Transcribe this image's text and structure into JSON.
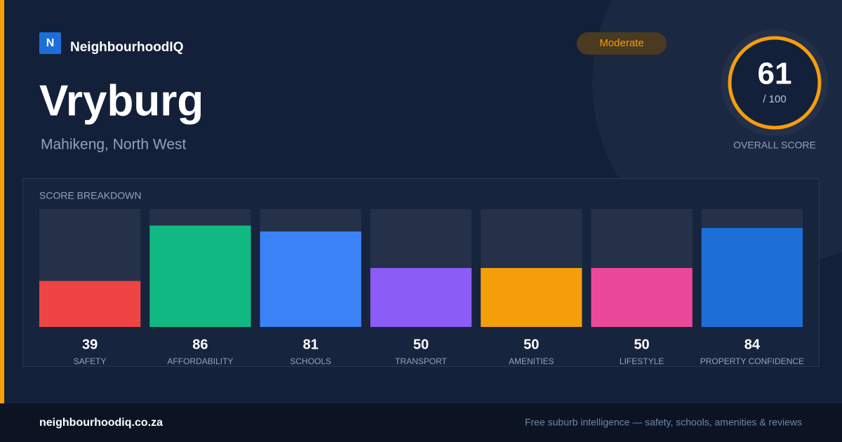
{
  "brand": {
    "logo": "N",
    "name": "NeighbourhoodIQ"
  },
  "badge": "Moderate",
  "title": "Vryburg",
  "subtitle": "Mahikeng, North West",
  "score": {
    "value": 61,
    "max_label": "/ 100",
    "caption": "OVERALL SCORE"
  },
  "chart_data": {
    "type": "bar",
    "title": "SCORE BREAKDOWN",
    "categories": [
      "SAFETY",
      "AFFORDABILITY",
      "SCHOOLS",
      "TRANSPORT",
      "AMENITIES",
      "LIFESTYLE",
      "PROPERTY CONFIDENCE"
    ],
    "values": [
      39,
      86,
      81,
      50,
      50,
      50,
      84
    ],
    "colors": [
      "#ef4444",
      "#10b981",
      "#3b82f6",
      "#8b5cf6",
      "#f59e0b",
      "#ec4899",
      "#1d6fd8"
    ],
    "ylim": [
      0,
      100
    ]
  },
  "footer": {
    "site": "neighbourhoodiq.co.za",
    "tagline": "Free suburb intelligence — safety, schools, amenities & reviews"
  }
}
